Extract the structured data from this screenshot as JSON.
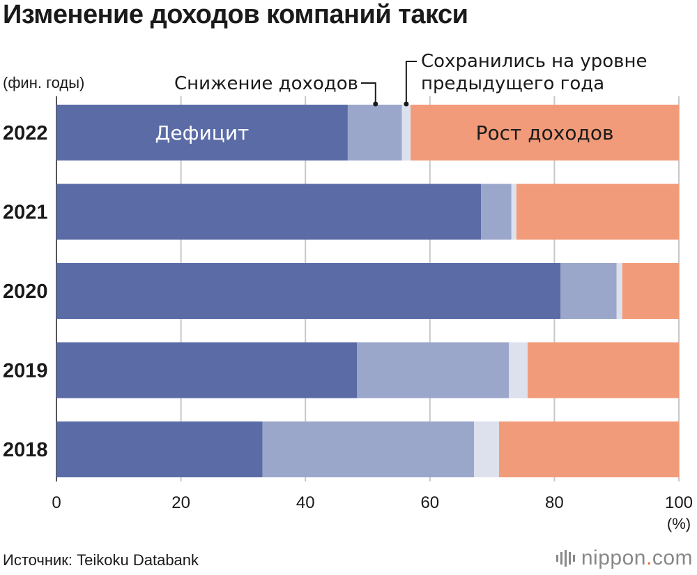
{
  "chart_data": {
    "type": "bar",
    "stacked": true,
    "orientation": "horizontal",
    "title": "Изменение доходов компаний такси",
    "ylabel": "(фин. годы)",
    "xunit": "(%)",
    "xlim": [
      0,
      100
    ],
    "xticks": [
      0,
      20,
      40,
      60,
      80,
      100
    ],
    "grid": true,
    "categories": [
      "2022",
      "2021",
      "2020",
      "2019",
      "2018"
    ],
    "series": [
      {
        "name": "Дефицит",
        "color": "#5a6ba6",
        "values": [
          46.8,
          68.2,
          81.0,
          48.3,
          33.1
        ]
      },
      {
        "name": "Снижение доходов",
        "color": "#9aa7cb",
        "values": [
          8.7,
          4.9,
          9.0,
          24.4,
          34.0
        ]
      },
      {
        "name": "Сохранились на уровне предыдущего года",
        "color": "#dde1ee",
        "values": [
          1.4,
          0.8,
          0.9,
          3.0,
          4.0
        ]
      },
      {
        "name": "Рост доходов",
        "color": "#f29b7a",
        "values": [
          43.1,
          26.1,
          9.1,
          24.3,
          28.9
        ]
      }
    ],
    "series_label_lines": [
      "Сохранились на уровне",
      "предыдущего года"
    ]
  },
  "footer": {
    "source": "Источник: Teikoku Databank",
    "logo_main": "nippon",
    "logo_dot": ".",
    "logo_suffix": "com"
  }
}
